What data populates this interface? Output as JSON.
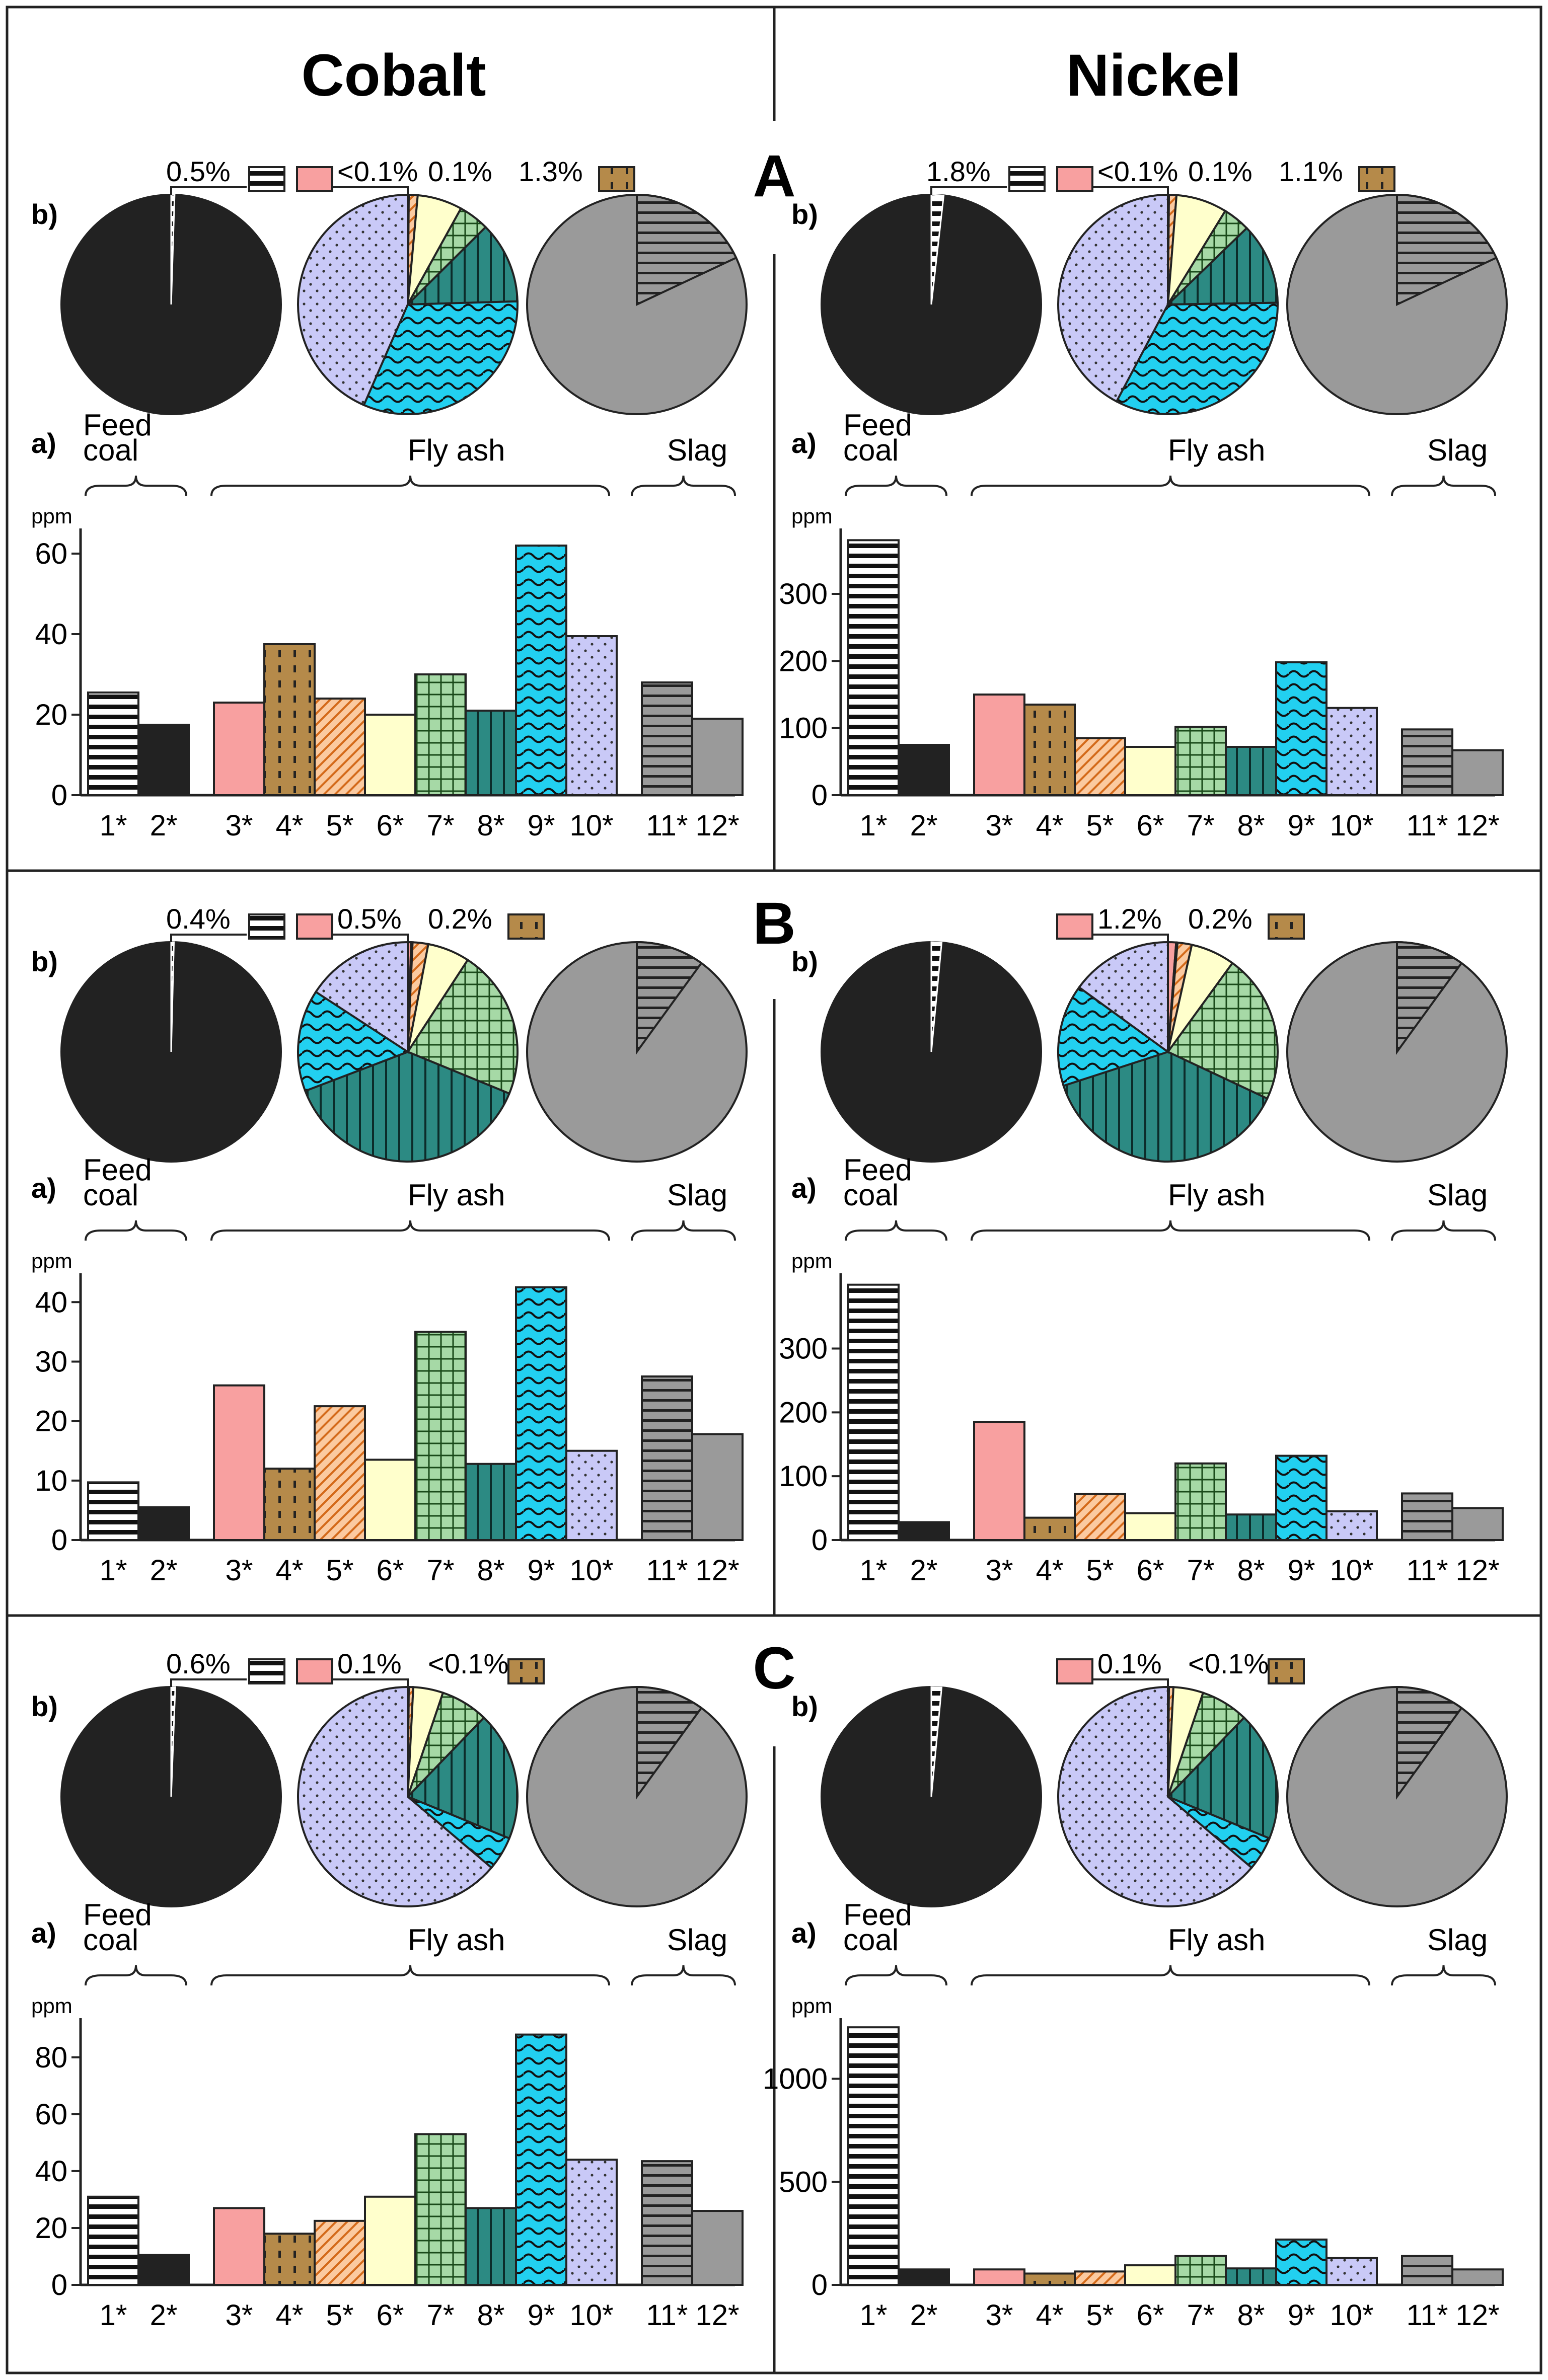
{
  "columns": [
    "Cobalt",
    "Nickel"
  ],
  "panel_letters": [
    "A",
    "B",
    "C"
  ],
  "sub_labels": {
    "pie": "b)",
    "bar": "a)"
  },
  "group_labels": {
    "feed": "Feed\ncoal",
    "fly": "Fly ash",
    "slag": "Slag"
  },
  "unit": "ppm",
  "categories": [
    "1*",
    "2*",
    "3*",
    "4*",
    "5*",
    "6*",
    "7*",
    "8*",
    "9*",
    "10*",
    "11*",
    "12*"
  ],
  "fill_colors": [
    "#ffffff",
    "#222222",
    "#f8a0a0",
    "#b58a4a",
    "#fbcaa0",
    "#ffffcc",
    "#a6d9a6",
    "#2c8a83",
    "#22d0f0",
    "#c9c9f7",
    "#9a9a9a",
    "#9a9a9a"
  ],
  "chart_data": [
    {
      "type": "bar",
      "panel": "A",
      "element": "Cobalt",
      "ylabel": "ppm",
      "ylim": [
        0,
        65
      ],
      "yticks": [
        0,
        20,
        40,
        60
      ],
      "categories": [
        "1*",
        "2*",
        "3*",
        "4*",
        "5*",
        "6*",
        "7*",
        "8*",
        "9*",
        "10*",
        "11*",
        "12*"
      ],
      "values": [
        25.5,
        17.5,
        23,
        37.5,
        24,
        20,
        30,
        21,
        62,
        39.5,
        28,
        19
      ],
      "pie_feed_labels": [
        "0.5%"
      ],
      "pie_fly_labels": [
        "<0.1%",
        "0.1%",
        "1.3%"
      ],
      "pie_fly_shares": [
        0.0005,
        0.001,
        0.013,
        0.066,
        0.045,
        0.12,
        0.32,
        0.4345
      ],
      "pie_slag_share_11": 0.18
    },
    {
      "type": "bar",
      "panel": "A",
      "element": "Nickel",
      "ylabel": "ppm",
      "ylim": [
        0,
        390
      ],
      "yticks": [
        0,
        100,
        200,
        300
      ],
      "categories": [
        "1*",
        "2*",
        "3*",
        "4*",
        "5*",
        "6*",
        "7*",
        "8*",
        "9*",
        "10*",
        "11*",
        "12*"
      ],
      "values": [
        380,
        75,
        150,
        135,
        85,
        72,
        102,
        72,
        198,
        130,
        98,
        67
      ],
      "pie_feed_labels": [
        "1.8%"
      ],
      "pie_fly_labels": [
        "<0.1%",
        "0.1%",
        "1.1%"
      ],
      "pie_fly_shares": [
        0.0005,
        0.001,
        0.011,
        0.075,
        0.04,
        0.12,
        0.33,
        0.4225
      ],
      "pie_slag_share_11": 0.18
    },
    {
      "type": "bar",
      "panel": "B",
      "element": "Cobalt",
      "ylabel": "ppm",
      "ylim": [
        0,
        44
      ],
      "yticks": [
        0,
        10,
        20,
        30,
        40
      ],
      "categories": [
        "1*",
        "2*",
        "3*",
        "4*",
        "5*",
        "6*",
        "7*",
        "8*",
        "9*",
        "10*",
        "11*",
        "12*"
      ],
      "values": [
        9.7,
        5.5,
        26,
        12,
        22.5,
        13.5,
        35,
        12.8,
        42.5,
        15,
        27.5,
        17.8
      ],
      "pie_feed_labels": [
        "0.4%"
      ],
      "pie_fly_labels": [
        "0.5%",
        "0.2%"
      ],
      "pie_fly_shares": [
        0.005,
        0.002,
        0.023,
        0.062,
        0.22,
        0.38,
        0.15,
        0.158
      ],
      "pie_slag_share_11": 0.1
    },
    {
      "type": "bar",
      "panel": "B",
      "element": "Nickel",
      "ylabel": "ppm",
      "ylim": [
        0,
        410
      ],
      "yticks": [
        0,
        100,
        200,
        300
      ],
      "categories": [
        "1*",
        "2*",
        "3*",
        "4*",
        "5*",
        "6*",
        "7*",
        "8*",
        "9*",
        "10*",
        "11*",
        "12*"
      ],
      "values": [
        400,
        28,
        185,
        35,
        72,
        42,
        120,
        40,
        132,
        45,
        73,
        50
      ],
      "pie_feed_labels": [],
      "pie_fly_labels": [
        "1.2%",
        "0.2%"
      ],
      "pie_fly_shares": [
        0.012,
        0.002,
        0.021,
        0.065,
        0.22,
        0.38,
        0.15,
        0.15
      ],
      "pie_slag_share_11": 0.1
    },
    {
      "type": "bar",
      "panel": "C",
      "element": "Cobalt",
      "ylabel": "ppm",
      "ylim": [
        0,
        92
      ],
      "yticks": [
        0,
        20,
        40,
        60,
        80
      ],
      "categories": [
        "1*",
        "2*",
        "3*",
        "4*",
        "5*",
        "6*",
        "7*",
        "8*",
        "9*",
        "10*",
        "11*",
        "12*"
      ],
      "values": [
        31,
        10.5,
        27,
        18,
        22.5,
        31,
        53,
        27,
        88,
        44,
        43.5,
        26
      ],
      "pie_feed_labels": [
        "0.6%"
      ],
      "pie_fly_labels": [
        "0.1%",
        "<0.1%"
      ],
      "pie_fly_shares": [
        0.001,
        0.0005,
        0.0065,
        0.044,
        0.07,
        0.19,
        0.05,
        0.638
      ],
      "pie_slag_share_11": 0.1
    },
    {
      "type": "bar",
      "panel": "C",
      "element": "Nickel",
      "ylabel": "ppm",
      "ylim": [
        0,
        1270
      ],
      "yticks": [
        0,
        500,
        1000
      ],
      "categories": [
        "1*",
        "2*",
        "3*",
        "4*",
        "5*",
        "6*",
        "7*",
        "8*",
        "9*",
        "10*",
        "11*",
        "12*"
      ],
      "values": [
        1250,
        75,
        75,
        55,
        65,
        95,
        140,
        80,
        220,
        130,
        140,
        75
      ],
      "pie_feed_labels": [],
      "pie_fly_labels": [
        "0.1%",
        "<0.1%"
      ],
      "pie_fly_shares": [
        0.001,
        0.0005,
        0.0065,
        0.044,
        0.07,
        0.19,
        0.05,
        0.638
      ],
      "pie_slag_share_11": 0.1
    }
  ]
}
